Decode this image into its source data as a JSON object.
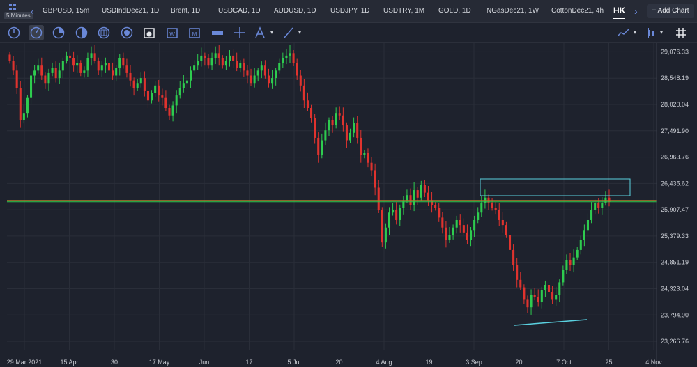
{
  "interval_badge": "5 Minutes",
  "tabs": [
    {
      "label": "GBPUSD, 15m"
    },
    {
      "label": "USDIndDec21, 1D"
    },
    {
      "label": "Brent, 1D"
    },
    {
      "label": "USDCAD, 1D"
    },
    {
      "label": "AUDUSD, 1D"
    },
    {
      "label": "USDJPY, 1D"
    },
    {
      "label": "USDTRY, 1M"
    },
    {
      "label": "GOLD, 1D"
    },
    {
      "label": "NGasDec21, 1W"
    },
    {
      "label": "CottonDec21, 4h"
    }
  ],
  "active_tab": "HK",
  "add_chart_label": "+ Add Chart",
  "toolbar_icons": [
    "clock-icon",
    "clock-icon",
    "pie-icon",
    "half-circle-icon",
    "circle-grid-icon",
    "circle-grid-icon",
    "calendar-icon",
    "calendar-icon",
    "calendar-icon",
    "ruler-icon",
    "crosshair-icon",
    "fib-icon",
    "line-tool-icon",
    "indicator-icon",
    "candle-type-icon",
    "hashtag-icon"
  ],
  "colors": {
    "up": "#2ecc4f",
    "down": "#e0332e",
    "accent": "#5ad1e0",
    "price_line": "#9a9a3a"
  },
  "chart_data": {
    "type": "candlestick",
    "y_ticks": [
      "29,076.33",
      "28,548.19",
      "28,020.04",
      "27,491.90",
      "26,963.76",
      "26,435.62",
      "25,907.47",
      "25,379.33",
      "24,851.19",
      "24,323.04",
      "23,794.90",
      "23,266.76"
    ],
    "y_tick_values": [
      29076.33,
      28548.19,
      28020.04,
      27491.9,
      26963.76,
      26435.62,
      25907.47,
      25379.33,
      24851.19,
      24323.04,
      23794.9,
      23266.76
    ],
    "ylim": [
      23100,
      29250
    ],
    "x_ticks": [
      "29 Mar 2021",
      "15 Apr",
      "30",
      "17 May",
      "Jun",
      "17",
      "5 Jul",
      "20",
      "4 Aug",
      "19",
      "3 Sep",
      "20",
      "7 Oct",
      "25",
      "4 Nov"
    ],
    "current_price": "26,066.46",
    "current_value": 26066.46,
    "closes": [
      28900,
      28700,
      28350,
      27700,
      27850,
      28150,
      28600,
      28700,
      28800,
      28600,
      28450,
      28650,
      28750,
      28550,
      28700,
      28900,
      29000,
      28950,
      28800,
      28850,
      28650,
      28700,
      28950,
      29050,
      28900,
      28700,
      28800,
      28850,
      28700,
      28600,
      28750,
      28950,
      28800,
      28650,
      28500,
      28350,
      28450,
      28550,
      28300,
      28100,
      28250,
      28400,
      28200,
      28150,
      27950,
      27800,
      28000,
      28200,
      28350,
      28450,
      28500,
      28700,
      28800,
      28900,
      29000,
      28950,
      28800,
      28950,
      29050,
      28950,
      28800,
      28900,
      29000,
      28900,
      28750,
      28850,
      28700,
      28600,
      28450,
      28600,
      28700,
      28800,
      28600,
      28450,
      28550,
      28700,
      28850,
      28950,
      29000,
      29050,
      28850,
      28600,
      28400,
      28100,
      27950,
      27750,
      27350,
      27000,
      27300,
      27500,
      27700,
      27600,
      27850,
      27800,
      27600,
      27300,
      27450,
      27650,
      27350,
      27000,
      27050,
      26850,
      26700,
      26350,
      25900,
      25250,
      25550,
      25850,
      25900,
      25700,
      25950,
      26100,
      26200,
      26000,
      26300,
      26150,
      26400,
      26250,
      26100,
      26000,
      25950,
      25750,
      25550,
      25300,
      25400,
      25550,
      25700,
      25600,
      25450,
      25300,
      25500,
      25700,
      25850,
      26050,
      26150,
      26050,
      25950,
      25900,
      25700,
      25600,
      25400,
      25100,
      24800,
      24500,
      24350,
      24100,
      23950,
      24200,
      24150,
      24050,
      24300,
      24400,
      24250,
      24100,
      24200,
      24450,
      24700,
      24900,
      24800,
      24950,
      25100,
      25300,
      25500,
      25700,
      25900,
      26050,
      25950,
      26050,
      26150,
      26066
    ]
  }
}
